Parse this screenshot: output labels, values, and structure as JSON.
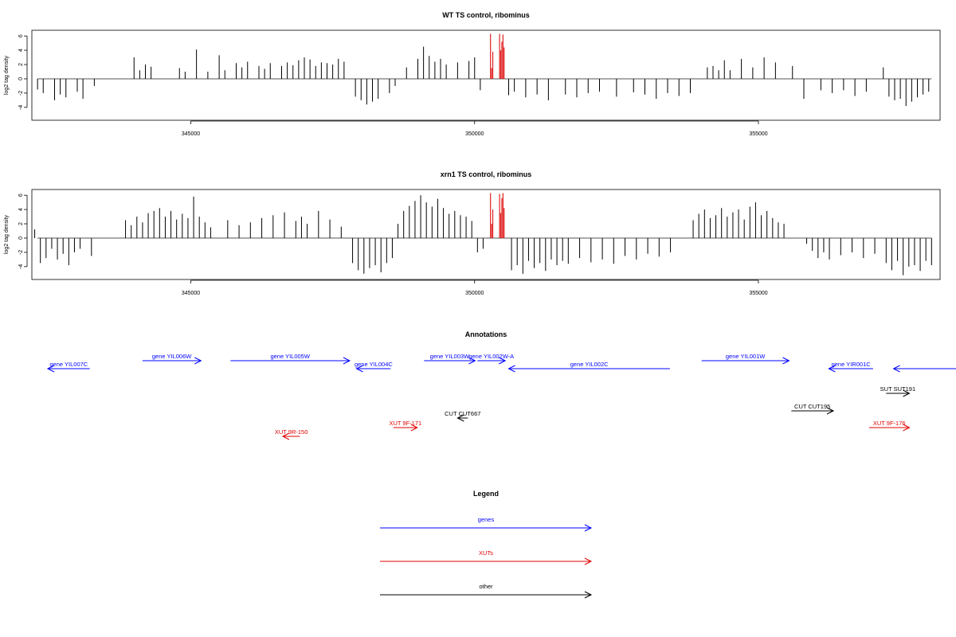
{
  "chart_data": [
    {
      "type": "bar",
      "title": "WT TS control, ribominus",
      "ylabel": "log2 tag density",
      "xlabel": "",
      "xlim": [
        342200,
        358200
      ],
      "ylim": [
        -5.8,
        6.8
      ],
      "yticks": [
        -4,
        -2,
        0,
        2,
        4,
        6
      ],
      "xticks": [
        345000,
        350000,
        355000
      ],
      "grid": false,
      "series": [
        {
          "color": "#000000",
          "x": [
            342300,
            342400,
            342600,
            342700,
            342800,
            343000,
            343100,
            343300,
            344000,
            344100,
            344200,
            344300,
            344800,
            344900,
            345100,
            345300,
            345500,
            345600,
            345800,
            345900,
            346000,
            346200,
            346300,
            346400,
            346600,
            346700,
            346800,
            346900,
            347000,
            347100,
            347200,
            347300,
            347400,
            347500,
            347600,
            347700,
            347900,
            348000,
            348100,
            348200,
            348300,
            348500,
            348600,
            348800,
            349000,
            349100,
            349200,
            349300,
            349400,
            349500,
            349700,
            349900,
            350000,
            350100,
            350600,
            350700,
            350900,
            351100,
            351300,
            351600,
            351800,
            352000,
            352200,
            352500,
            352800,
            353000,
            353200,
            353400,
            353600,
            353800,
            354100,
            354200,
            354300,
            354400,
            354500,
            354700,
            354900,
            355100,
            355300,
            355600,
            355800,
            356100,
            356300,
            356500,
            356700,
            356900,
            357200,
            357300,
            357400,
            357500,
            357600,
            357700,
            357800,
            357900,
            358000
          ],
          "values": [
            -1.5,
            -2.0,
            -3.0,
            -2.2,
            -2.6,
            -1.8,
            -2.8,
            -1.0,
            3.0,
            1.2,
            2.0,
            1.7,
            1.5,
            1.0,
            4.1,
            1.0,
            3.3,
            1.2,
            2.2,
            1.6,
            2.4,
            1.8,
            1.4,
            2.2,
            1.8,
            2.3,
            1.9,
            2.6,
            3.0,
            2.7,
            1.8,
            2.3,
            2.2,
            2.0,
            2.8,
            2.4,
            -2.5,
            -3.0,
            -3.6,
            -3.2,
            -2.8,
            -2.0,
            -1.0,
            1.6,
            2.8,
            4.5,
            3.2,
            2.4,
            2.8,
            2.0,
            2.3,
            2.5,
            3.0,
            -1.6,
            -2.3,
            -1.8,
            -2.6,
            -2.2,
            -3.0,
            -2.2,
            -2.6,
            -2.0,
            -1.8,
            -2.5,
            -1.9,
            -2.2,
            -2.8,
            -2.0,
            -2.4,
            -2.0,
            1.6,
            1.8,
            1.2,
            2.6,
            1.2,
            2.8,
            1.6,
            3.0,
            2.3,
            1.8,
            -2.8,
            -1.6,
            -2.0,
            -1.6,
            -2.4,
            -1.8,
            1.6,
            -2.5,
            -3.0,
            -2.8,
            -3.8,
            -3.2,
            -2.6,
            -2.2,
            -1.8
          ]
        },
        {
          "color": "#e02020",
          "x": [
            350280,
            350300,
            350320,
            350440,
            350460,
            350480,
            350500,
            350520
          ],
          "values": [
            6.3,
            1.5,
            3.8,
            6.3,
            4.0,
            5.2,
            6.2,
            4.4
          ]
        }
      ]
    },
    {
      "type": "bar",
      "title": "xrn1 TS control, ribominus",
      "ylabel": "log2 tag density",
      "xlabel": "",
      "xlim": [
        342200,
        358200
      ],
      "ylim": [
        -5.8,
        6.8
      ],
      "yticks": [
        -4,
        -2,
        0,
        2,
        4,
        6
      ],
      "xticks": [
        345000,
        350000,
        355000
      ],
      "grid": false,
      "series": [
        {
          "color": "#000000",
          "x": [
            342250,
            342350,
            342450,
            342550,
            342650,
            342750,
            342850,
            342950,
            343050,
            343250,
            343850,
            343950,
            344050,
            344150,
            344250,
            344350,
            344450,
            344550,
            344650,
            344750,
            344850,
            344950,
            345050,
            345150,
            345250,
            345350,
            345650,
            345850,
            346050,
            346250,
            346450,
            346650,
            346850,
            346950,
            347050,
            347250,
            347450,
            347650,
            347850,
            347950,
            348050,
            348150,
            348250,
            348350,
            348450,
            348550,
            348650,
            348750,
            348850,
            348950,
            349050,
            349150,
            349250,
            349350,
            349450,
            349550,
            349650,
            349750,
            349850,
            349950,
            350050,
            350150,
            350650,
            350750,
            350850,
            350950,
            351050,
            351150,
            351250,
            351350,
            351450,
            351550,
            351650,
            351850,
            352050,
            352250,
            352450,
            352650,
            352850,
            353050,
            353250,
            353450,
            353850,
            353950,
            354050,
            354150,
            354250,
            354350,
            354450,
            354550,
            354650,
            354750,
            354850,
            354950,
            355050,
            355150,
            355250,
            355350,
            355450,
            355850,
            355950,
            356050,
            356150,
            356250,
            356450,
            356650,
            356850,
            357050,
            357250,
            357350,
            357450,
            357550,
            357650,
            357750,
            357850,
            357950,
            358050
          ],
          "values": [
            1.2,
            -3.5,
            -2.8,
            -1.5,
            -3.0,
            -2.2,
            -3.8,
            -2.0,
            -1.5,
            -2.5,
            2.5,
            1.8,
            3.0,
            2.2,
            3.5,
            3.8,
            4.2,
            3.0,
            3.8,
            2.6,
            3.4,
            2.8,
            5.8,
            3.0,
            2.2,
            1.5,
            2.5,
            1.8,
            2.2,
            2.8,
            3.2,
            3.6,
            2.4,
            3.0,
            2.0,
            3.8,
            2.6,
            1.6,
            -3.5,
            -4.5,
            -5.0,
            -4.2,
            -3.8,
            -4.8,
            -3.5,
            -2.8,
            2.0,
            3.8,
            4.5,
            5.2,
            6.0,
            5.0,
            4.4,
            5.5,
            4.2,
            3.4,
            3.8,
            3.2,
            3.0,
            2.4,
            -2.0,
            -1.5,
            -4.5,
            -3.8,
            -5.0,
            -3.2,
            -4.2,
            -3.5,
            -4.6,
            -3.0,
            -3.8,
            -3.2,
            -3.6,
            -2.8,
            -3.4,
            -3.0,
            -3.6,
            -2.5,
            -3.0,
            -2.2,
            -2.6,
            -2.0,
            2.5,
            3.4,
            4.0,
            2.8,
            3.2,
            4.2,
            3.0,
            3.6,
            4.0,
            2.6,
            4.4,
            5.0,
            3.2,
            3.8,
            2.8,
            2.2,
            2.0,
            -0.8,
            -1.8,
            -2.8,
            -2.0,
            -3.0,
            -2.4,
            -2.0,
            -2.8,
            -2.2,
            -3.5,
            -4.5,
            -3.2,
            -5.2,
            -4.0,
            -3.8,
            -4.6,
            -3.2,
            -3.8
          ]
        },
        {
          "color": "#e02020",
          "x": [
            350280,
            350300,
            350320,
            350440,
            350460,
            350480,
            350500,
            350520
          ],
          "values": [
            6.3,
            2.0,
            4.0,
            6.2,
            3.5,
            5.6,
            6.3,
            4.2
          ]
        }
      ]
    }
  ],
  "annotations": {
    "title": "Annotations",
    "items": [
      {
        "label": "gene YIL007C",
        "color": "#0000ff",
        "start": 342480,
        "end": 343220,
        "dir": "left",
        "row": 1
      },
      {
        "label": "gene YIL006W",
        "color": "#0000ff",
        "start": 344150,
        "end": 345180,
        "dir": "right",
        "row": 0
      },
      {
        "label": "gene YIL005W",
        "color": "#0000ff",
        "start": 345700,
        "end": 347800,
        "dir": "right",
        "row": 0
      },
      {
        "label": "gene YIL004C",
        "color": "#0000ff",
        "start": 347920,
        "end": 348520,
        "dir": "left",
        "row": 1
      },
      {
        "label": "gene YIL003W",
        "color": "#0000ff",
        "start": 349110,
        "end": 350010,
        "dir": "right",
        "row": 0
      },
      {
        "label": "gene YIL002W-A",
        "color": "#0000ff",
        "start": 350050,
        "end": 350540,
        "dir": "right",
        "row": 0
      },
      {
        "label": "gene YIL002C",
        "color": "#0000ff",
        "start": 350600,
        "end": 353440,
        "dir": "left",
        "row": 1
      },
      {
        "label": "gene YIL001W",
        "color": "#0000ff",
        "start": 354000,
        "end": 355540,
        "dir": "right",
        "row": 0
      },
      {
        "label": "gene YIR001C",
        "color": "#0000ff",
        "start": 356240,
        "end": 357020,
        "dir": "left",
        "row": 1
      },
      {
        "label": "",
        "color": "#0000ff",
        "start": 357380,
        "end": 358550,
        "dir": "left",
        "row": 1
      },
      {
        "label": "SUT SUT191",
        "color": "#000000",
        "start": 357250,
        "end": 357660,
        "dir": "right",
        "row": 2
      },
      {
        "label": "CUT CUT195",
        "color": "#000000",
        "start": 355580,
        "end": 356320,
        "dir": "right",
        "row": 3
      },
      {
        "label": "CUT CUT667",
        "color": "#000000",
        "start": 349700,
        "end": 349880,
        "dir": "left",
        "row": 4
      },
      {
        "label": "XUT 9F-171",
        "color": "#e00000",
        "start": 348570,
        "end": 348990,
        "dir": "right",
        "row": 5
      },
      {
        "label": "XUT 9F-176",
        "color": "#e00000",
        "start": 356950,
        "end": 357660,
        "dir": "right",
        "row": 5
      },
      {
        "label": "XUT 9R-150",
        "color": "#e00000",
        "start": 346620,
        "end": 346920,
        "dir": "left",
        "row": 6
      }
    ]
  },
  "legend": {
    "title": "Legend",
    "items": [
      {
        "label": "genes",
        "color": "#0000ff"
      },
      {
        "label": "XUTs",
        "color": "#e00000"
      },
      {
        "label": "other",
        "color": "#000000"
      }
    ]
  }
}
